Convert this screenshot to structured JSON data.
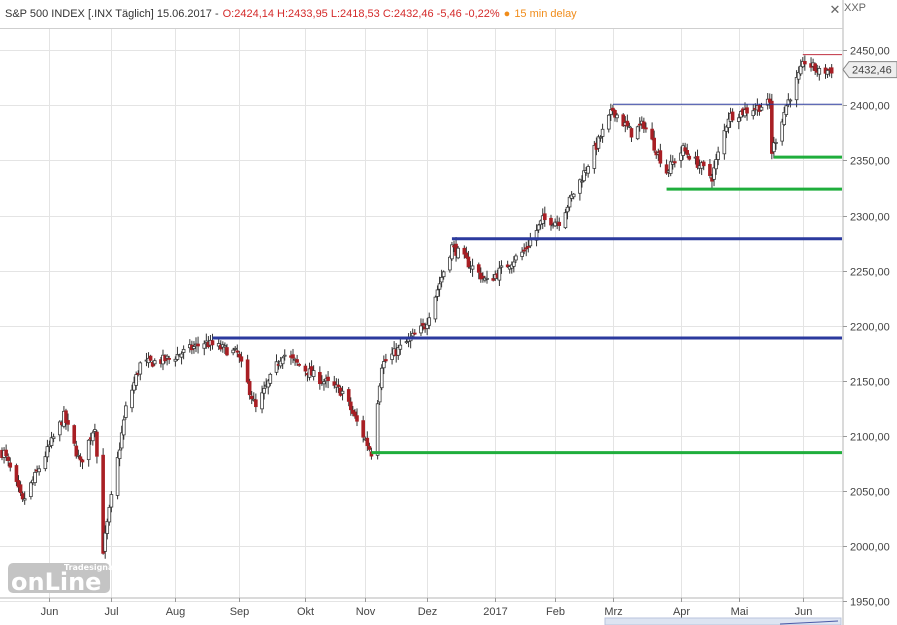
{
  "header": {
    "title": "S&P 500 INDEX [.INX Täglich] 15.06.2017 -",
    "ohlc": "O:2424,14 H:2433,95 L:2418,53 C:2432,46 -5,46 -0,22%",
    "dot": "●",
    "delay": "15 min delay",
    "close_symbol": "✕",
    "axis_caption": "XXP"
  },
  "watermark": {
    "text": "onLine",
    "sub": "Tradesignal®"
  },
  "colors": {
    "up": "#3a3a3a",
    "down": "#a81f24",
    "wick": "#333333",
    "resistance": "#2b3a9e",
    "support": "#1fae3c",
    "top_line": "#c03040",
    "grid": "#e4e4e4",
    "badge_bg": "#eeeeee",
    "badge_border": "#888888"
  },
  "chart_data": {
    "type": "candlestick",
    "title": "S&P 500 INDEX [.INX Täglich] 15.06.2017",
    "x_axis": {
      "months": [
        "Jun",
        "Jul",
        "Aug",
        "Sep",
        "Okt",
        "Nov",
        "Dez",
        "2017",
        "Feb",
        "Mrz",
        "Apr",
        "Mai",
        "Jun"
      ],
      "range": [
        "2016-05-09",
        "2017-06-20"
      ]
    },
    "y_axis": {
      "ticks": [
        "2450,00",
        "2400,00",
        "2350,00",
        "2300,00",
        "2250,00",
        "2200,00",
        "2150,00",
        "2100,00",
        "2050,00",
        "2000,00",
        "1950,00"
      ],
      "ylim": [
        1945,
        2462
      ],
      "side": "right"
    },
    "grid": true,
    "last_value": {
      "label": "2432,46",
      "value": 2432.46
    },
    "key_points": [
      {
        "date": "2016-05-10",
        "close": 2085
      },
      {
        "date": "2016-05-19",
        "close": 2040
      },
      {
        "date": "2016-06-08",
        "close": 2118
      },
      {
        "date": "2016-06-16",
        "close": 2075
      },
      {
        "date": "2016-06-23",
        "close": 2110
      },
      {
        "date": "2016-06-27",
        "close": 1997
      },
      {
        "date": "2016-07-08",
        "close": 2125
      },
      {
        "date": "2016-07-15",
        "close": 2165
      },
      {
        "date": "2016-07-29",
        "close": 2170
      },
      {
        "date": "2016-08-15",
        "close": 2185
      },
      {
        "date": "2016-08-31",
        "close": 2175
      },
      {
        "date": "2016-09-09",
        "close": 2125
      },
      {
        "date": "2016-09-22",
        "close": 2175
      },
      {
        "date": "2016-10-07",
        "close": 2155
      },
      {
        "date": "2016-10-21",
        "close": 2140
      },
      {
        "date": "2016-11-04",
        "close": 2085
      },
      {
        "date": "2016-11-09",
        "close": 2165
      },
      {
        "date": "2016-11-30",
        "close": 2200
      },
      {
        "date": "2016-12-13",
        "close": 2272
      },
      {
        "date": "2016-12-30",
        "close": 2240
      },
      {
        "date": "2017-01-17",
        "close": 2268
      },
      {
        "date": "2017-01-26",
        "close": 2296
      },
      {
        "date": "2017-02-03",
        "close": 2295
      },
      {
        "date": "2017-02-14",
        "close": 2335
      },
      {
        "date": "2017-03-01",
        "close": 2396
      },
      {
        "date": "2017-03-10",
        "close": 2375
      },
      {
        "date": "2017-03-16",
        "close": 2383
      },
      {
        "date": "2017-03-27",
        "close": 2340
      },
      {
        "date": "2017-04-04",
        "close": 2360
      },
      {
        "date": "2017-04-18",
        "close": 2335
      },
      {
        "date": "2017-04-26",
        "close": 2390
      },
      {
        "date": "2017-05-16",
        "close": 2402
      },
      {
        "date": "2017-05-17",
        "close": 2358
      },
      {
        "date": "2017-05-24",
        "close": 2400
      },
      {
        "date": "2017-06-02",
        "close": 2440
      },
      {
        "date": "2017-06-09",
        "close": 2430
      },
      {
        "date": "2017-06-15",
        "close": 2432.46
      }
    ],
    "levels": [
      {
        "kind": "resistance",
        "value": 2189,
        "from": "2016-08-19",
        "to": "2017-06-20",
        "thick": true
      },
      {
        "kind": "resistance",
        "value": 2279,
        "from": "2016-12-13",
        "to": "2017-06-20",
        "thick": true
      },
      {
        "kind": "resistance",
        "value": 2401,
        "from": "2017-03-01",
        "to": "2017-06-20",
        "thick": false
      },
      {
        "kind": "support",
        "value": 2085,
        "from": "2016-11-04",
        "to": "2017-06-20",
        "thick": true
      },
      {
        "kind": "support",
        "value": 2324,
        "from": "2017-03-27",
        "to": "2017-06-20",
        "thick": true
      },
      {
        "kind": "support",
        "value": 2353,
        "from": "2017-05-18",
        "to": "2017-06-20",
        "thick": true
      },
      {
        "kind": "top",
        "value": 2446,
        "from": "2017-06-01",
        "to": "2017-06-20",
        "thick": false
      }
    ]
  }
}
